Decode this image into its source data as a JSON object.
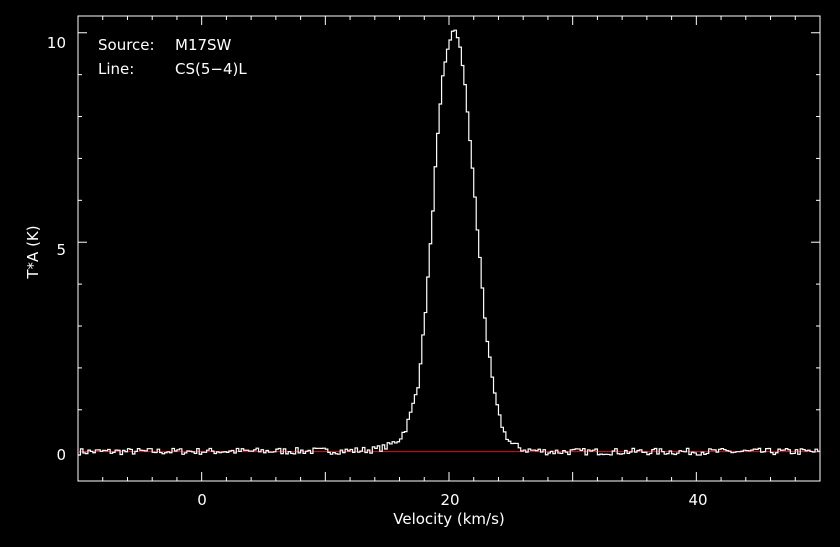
{
  "chart_data": {
    "type": "line",
    "xlabel": "Velocity (km/s)",
    "ylabel": "T*A (K)",
    "xlim": [
      -10,
      50
    ],
    "ylim": [
      -0.7,
      10.4
    ],
    "xticks": [
      "0",
      "20",
      "40"
    ],
    "yticks": [
      "0",
      "5",
      "10"
    ],
    "annotations": [
      {
        "key": "Source:",
        "value": "M17SW"
      },
      {
        "key": "Line:",
        "value": "CS(5−4)L"
      }
    ],
    "series": [
      {
        "style": "histogram",
        "color": "#ffffff",
        "x": [
          -10,
          12,
          14,
          15,
          16,
          16.5,
          17,
          17.5,
          18,
          18.5,
          19,
          19.5,
          20,
          20.3,
          20.6,
          20.9,
          21.2,
          21.6,
          22,
          22.5,
          23,
          23.5,
          24,
          24.5,
          25,
          26,
          28,
          50
        ],
        "values": [
          0.0,
          0.02,
          0.05,
          0.12,
          0.3,
          0.55,
          1.0,
          1.6,
          3.0,
          4.9,
          7.2,
          8.9,
          9.8,
          10.0,
          10.0,
          9.7,
          9.0,
          7.8,
          6.4,
          4.6,
          2.9,
          1.7,
          0.9,
          0.45,
          0.2,
          0.05,
          0.0,
          0.0
        ]
      },
      {
        "name": "baseline",
        "style": "line",
        "color": "#dd1111",
        "x": [
          -10,
          50
        ],
        "values": [
          0,
          0
        ]
      }
    ]
  }
}
